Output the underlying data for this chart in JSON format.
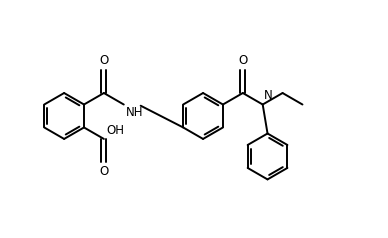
{
  "bg_color": "#ffffff",
  "line_color": "#000000",
  "lw": 1.4,
  "fs": 8.5,
  "fig_width": 3.88,
  "fig_height": 2.38,
  "dpi": 100,
  "R": 0.38,
  "xlim": [
    -2.6,
    3.8
  ],
  "ylim": [
    -1.9,
    1.7
  ]
}
